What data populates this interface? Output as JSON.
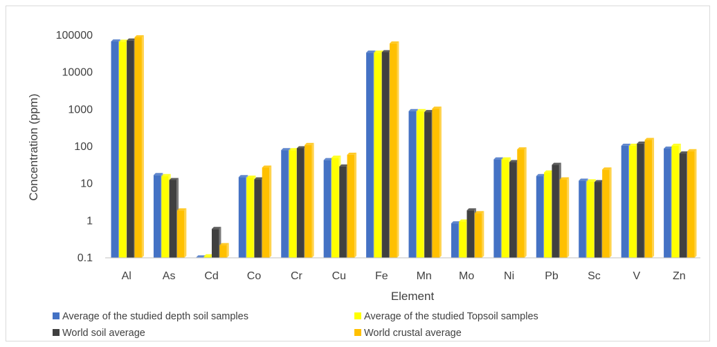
{
  "chart_data": {
    "type": "bar",
    "scale": "log",
    "ylim": [
      0.1,
      100000
    ],
    "yticks": [
      "100000",
      "10000",
      "1000",
      "100",
      "10",
      "1",
      "0.1"
    ],
    "ytick_values": [
      100000,
      10000,
      1000,
      100,
      10,
      1,
      0.1
    ],
    "xlabel": "Element",
    "ylabel": "Concentration (ppm)",
    "grid": false,
    "legend_position": "bottom",
    "categories": [
      "Al",
      "As",
      "Cd",
      "Co",
      "Cr",
      "Cu",
      "Fe",
      "Mn",
      "Mo",
      "Ni",
      "Pb",
      "Sc",
      "V",
      "Zn"
    ],
    "series": [
      {
        "name": "Average of the studied depth soil samples",
        "color": "#4472C4",
        "values": [
          68000,
          17,
          0.1,
          15,
          80,
          43,
          34000,
          900,
          0.85,
          45,
          16,
          12,
          105,
          88
        ]
      },
      {
        "name": "Average of the studied Topsoil samples",
        "color": "#FFFF00",
        "values": [
          67000,
          16,
          0.11,
          14.5,
          80,
          50,
          34000,
          900,
          0.95,
          45,
          20,
          11.5,
          105,
          105
        ]
      },
      {
        "name": "World soil average",
        "color": "#404040",
        "values": [
          72000,
          12.5,
          0.6,
          13,
          90,
          29,
          35000,
          850,
          1.9,
          38,
          32,
          11,
          120,
          65
        ]
      },
      {
        "name": "World crustal average",
        "color": "#FFC000",
        "values": [
          88000,
          1.9,
          0.22,
          27,
          110,
          60,
          60000,
          1050,
          1.6,
          84,
          13,
          24,
          150,
          75
        ]
      }
    ]
  }
}
